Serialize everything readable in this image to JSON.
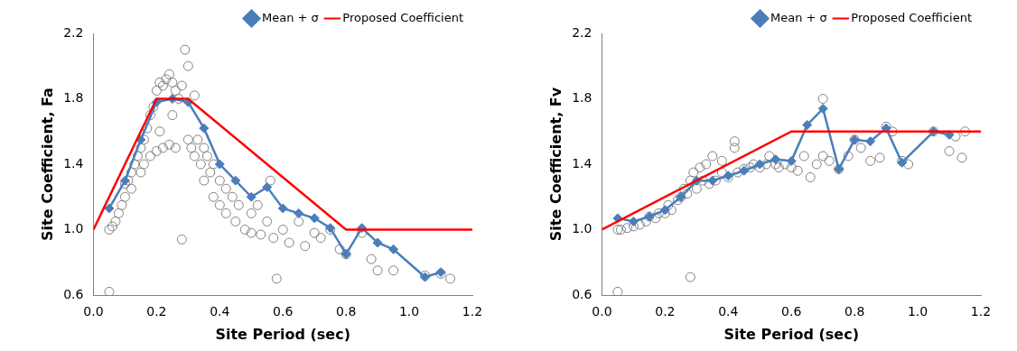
{
  "chart_data": [
    {
      "type": "scatter",
      "x_label": "Site Period (sec)",
      "y_label": "Site Coefficient, Fa",
      "xlim": [
        0,
        1.2
      ],
      "xticks": [
        {
          "value": 0,
          "label": "0.0"
        },
        0.2,
        0.4,
        0.6,
        0.8,
        {
          "value": 1,
          "label": "1.0"
        },
        1.2
      ],
      "ylim": [
        0.6,
        2.2
      ],
      "yticks": [
        0.6,
        {
          "value": 1,
          "label": "1.0"
        },
        1.4,
        1.8,
        2.2
      ],
      "grid": false,
      "legend": "upper right",
      "series": [
        {
          "type": "scatter",
          "color": "#808080",
          "marker": "circle-open",
          "line_style": "none",
          "x": [
            0.05,
            0.05,
            0.06,
            0.07,
            0.08,
            0.09,
            0.1,
            0.1,
            0.11,
            0.12,
            0.12,
            0.13,
            0.14,
            0.15,
            0.15,
            0.16,
            0.16,
            0.17,
            0.18,
            0.18,
            0.19,
            0.2,
            0.2,
            0.21,
            0.21,
            0.22,
            0.22,
            0.23,
            0.24,
            0.24,
            0.25,
            0.25,
            0.26,
            0.26,
            0.27,
            0.28,
            0.28,
            0.29,
            0.3,
            0.3,
            0.31,
            0.32,
            0.32,
            0.33,
            0.34,
            0.35,
            0.35,
            0.36,
            0.37,
            0.38,
            0.38,
            0.4,
            0.4,
            0.42,
            0.42,
            0.44,
            0.45,
            0.46,
            0.48,
            0.5,
            0.5,
            0.52,
            0.53,
            0.55,
            0.56,
            0.57,
            0.58,
            0.6,
            0.62,
            0.65,
            0.67,
            0.7,
            0.72,
            0.75,
            0.78,
            0.8,
            0.85,
            0.88,
            0.9,
            0.95,
            1.05,
            1.1,
            1.13
          ],
          "values": [
            1.0,
            0.62,
            1.02,
            1.05,
            1.1,
            1.15,
            1.2,
            1.28,
            1.3,
            1.35,
            1.25,
            1.4,
            1.45,
            1.5,
            1.35,
            1.55,
            1.4,
            1.62,
            1.7,
            1.45,
            1.75,
            1.85,
            1.48,
            1.9,
            1.6,
            1.88,
            1.5,
            1.92,
            1.95,
            1.52,
            1.9,
            1.7,
            1.85,
            1.5,
            1.8,
            1.88,
            0.94,
            2.1,
            2.0,
            1.55,
            1.5,
            1.82,
            1.45,
            1.55,
            1.4,
            1.5,
            1.3,
            1.45,
            1.35,
            1.2,
            1.4,
            1.3,
            1.15,
            1.25,
            1.1,
            1.2,
            1.05,
            1.15,
            1.0,
            1.1,
            0.98,
            1.15,
            0.97,
            1.05,
            1.3,
            0.95,
            0.7,
            1.0,
            0.92,
            1.05,
            0.9,
            0.98,
            0.95,
            1.0,
            0.88,
            0.85,
            0.98,
            0.82,
            0.75,
            0.75,
            0.72,
            0.73,
            0.7
          ]
        },
        {
          "name": "Mean + σ",
          "type": "line",
          "color": "#4a7ebb",
          "marker": "diamond",
          "line_style": "solid",
          "x": [
            0.05,
            0.1,
            0.15,
            0.2,
            0.25,
            0.3,
            0.35,
            0.4,
            0.45,
            0.5,
            0.55,
            0.6,
            0.65,
            0.7,
            0.75,
            0.8,
            0.85,
            0.9,
            0.95,
            1.05,
            1.1
          ],
          "values": [
            1.13,
            1.3,
            1.55,
            1.78,
            1.8,
            1.78,
            1.62,
            1.4,
            1.3,
            1.2,
            1.26,
            1.13,
            1.1,
            1.07,
            1.01,
            0.85,
            1.01,
            0.92,
            0.88,
            0.71,
            0.74
          ]
        },
        {
          "name": "Proposed Coefficient",
          "type": "line",
          "color": "#ff0000",
          "marker": "none",
          "line_style": "solid",
          "x": [
            0,
            0.2,
            0.3,
            0.8,
            1.2
          ],
          "values": [
            1.0,
            1.8,
            1.8,
            1.0,
            1.0
          ]
        }
      ]
    },
    {
      "type": "scatter",
      "x_label": "Site Period (sec)",
      "y_label": "Site Coefficient, Fv",
      "xlim": [
        0,
        1.2
      ],
      "xticks": [
        {
          "value": 0,
          "label": "0.0"
        },
        0.2,
        0.4,
        0.6,
        0.8,
        {
          "value": 1,
          "label": "1.0"
        },
        1.2
      ],
      "ylim": [
        0.6,
        2.2
      ],
      "yticks": [
        0.6,
        {
          "value": 1,
          "label": "1.0"
        },
        1.4,
        1.8,
        2.2
      ],
      "grid": false,
      "legend": "upper right",
      "series": [
        {
          "type": "scatter",
          "color": "#808080",
          "marker": "circle-open",
          "line_style": "none",
          "x": [
            0.05,
            0.05,
            0.06,
            0.08,
            0.1,
            0.12,
            0.14,
            0.15,
            0.17,
            0.18,
            0.2,
            0.21,
            0.22,
            0.24,
            0.25,
            0.26,
            0.27,
            0.28,
            0.28,
            0.29,
            0.3,
            0.31,
            0.32,
            0.33,
            0.34,
            0.35,
            0.36,
            0.38,
            0.38,
            0.4,
            0.42,
            0.42,
            0.43,
            0.45,
            0.47,
            0.48,
            0.5,
            0.52,
            0.53,
            0.55,
            0.56,
            0.58,
            0.6,
            0.62,
            0.64,
            0.66,
            0.68,
            0.7,
            0.7,
            0.72,
            0.75,
            0.78,
            0.8,
            0.82,
            0.85,
            0.88,
            0.9,
            0.92,
            0.95,
            0.97,
            1.05,
            1.1,
            1.12,
            1.14,
            1.15
          ],
          "values": [
            1.0,
            0.62,
            1.0,
            1.01,
            1.02,
            1.03,
            1.05,
            1.08,
            1.07,
            1.1,
            1.1,
            1.15,
            1.12,
            1.18,
            1.2,
            1.25,
            1.22,
            1.3,
            0.71,
            1.35,
            1.25,
            1.38,
            1.3,
            1.4,
            1.28,
            1.45,
            1.3,
            1.35,
            1.42,
            1.32,
            1.5,
            1.54,
            1.35,
            1.37,
            1.38,
            1.4,
            1.38,
            1.4,
            1.45,
            1.4,
            1.38,
            1.4,
            1.38,
            1.36,
            1.45,
            1.32,
            1.4,
            1.8,
            1.45,
            1.42,
            1.37,
            1.45,
            1.55,
            1.5,
            1.42,
            1.44,
            1.63,
            1.6,
            1.42,
            1.4,
            1.6,
            1.48,
            1.57,
            1.44,
            1.6
          ]
        },
        {
          "name": "Mean + σ",
          "type": "line",
          "color": "#4a7ebb",
          "marker": "diamond",
          "line_style": "solid",
          "x": [
            0.05,
            0.1,
            0.15,
            0.2,
            0.25,
            0.3,
            0.35,
            0.4,
            0.45,
            0.5,
            0.55,
            0.6,
            0.65,
            0.7,
            0.75,
            0.8,
            0.85,
            0.9,
            0.95,
            1.05,
            1.1
          ],
          "values": [
            1.07,
            1.05,
            1.08,
            1.12,
            1.2,
            1.3,
            1.3,
            1.33,
            1.36,
            1.4,
            1.43,
            1.42,
            1.64,
            1.74,
            1.37,
            1.55,
            1.54,
            1.62,
            1.41,
            1.6,
            1.58
          ]
        },
        {
          "name": "Proposed Coefficient",
          "type": "line",
          "color": "#ff0000",
          "marker": "none",
          "line_style": "solid",
          "x": [
            0,
            0.6,
            1.2
          ],
          "values": [
            1.0,
            1.6,
            1.6
          ]
        }
      ]
    }
  ]
}
